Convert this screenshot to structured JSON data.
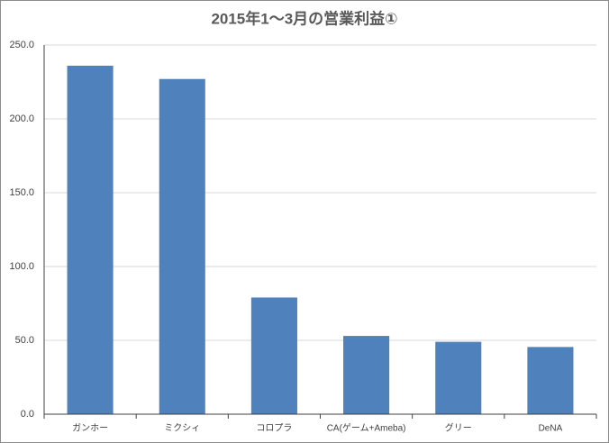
{
  "chart_data": {
    "type": "bar",
    "title": "2015年1～3月の営業利益①",
    "categories": [
      "ガンホー",
      "ミクシィ",
      "コロプラ",
      "CA(ゲーム+Ameba)",
      "グリー",
      "DeNA"
    ],
    "values": [
      236,
      227,
      79,
      53,
      49,
      45.5
    ],
    "color": "#4f81bd",
    "ylim": [
      0,
      250
    ],
    "yticks": [
      {
        "value": 0,
        "label": "0.0"
      },
      {
        "value": 50,
        "label": "50.0"
      },
      {
        "value": 100,
        "label": "100.0"
      },
      {
        "value": 150,
        "label": "150.0"
      },
      {
        "value": 200,
        "label": "200.0"
      },
      {
        "value": 250,
        "label": "250.0"
      }
    ],
    "grid": true
  }
}
